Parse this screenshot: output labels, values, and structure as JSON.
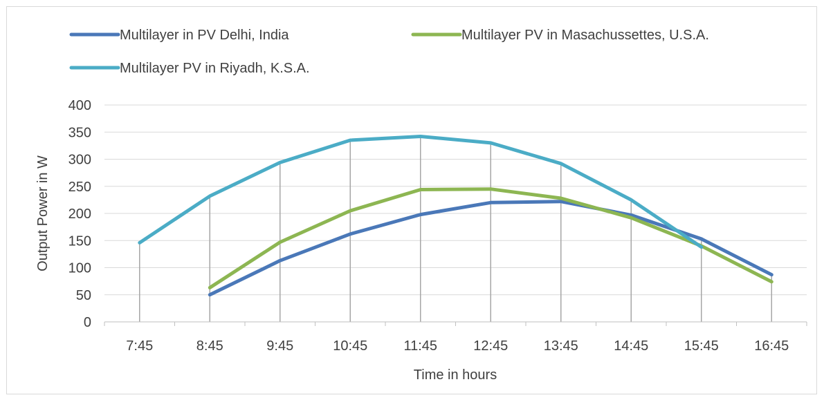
{
  "chart_data": {
    "type": "line",
    "title": "",
    "xlabel": "Time in hours",
    "ylabel": "Output Power in W",
    "categories": [
      "7:45",
      "8:45",
      "9:45",
      "10:45",
      "11:45",
      "12:45",
      "13:45",
      "14:45",
      "15:45",
      "16:45"
    ],
    "ylim": [
      0,
      400
    ],
    "yticks": [
      "0",
      "50",
      "100",
      "150",
      "200",
      "250",
      "300",
      "350",
      "400"
    ],
    "grid": "horizontal",
    "drop_lines": true,
    "legend_position": "top",
    "series": [
      {
        "name": "Multilayer in PV Delhi, India",
        "color": "#4a78b8",
        "values": [
          null,
          50,
          113,
          162,
          198,
          220,
          222,
          197,
          153,
          87
        ]
      },
      {
        "name": "Multilayer PV in Masachussettes, U.S.A.",
        "color": "#8db652",
        "values": [
          null,
          63,
          147,
          205,
          244,
          245,
          228,
          192,
          140,
          74
        ]
      },
      {
        "name": "Multilayer PV in Riyadh, K.S.A.",
        "color": "#4bacc6",
        "values": [
          146,
          232,
          294,
          335,
          342,
          330,
          292,
          225,
          138,
          null
        ]
      }
    ]
  }
}
